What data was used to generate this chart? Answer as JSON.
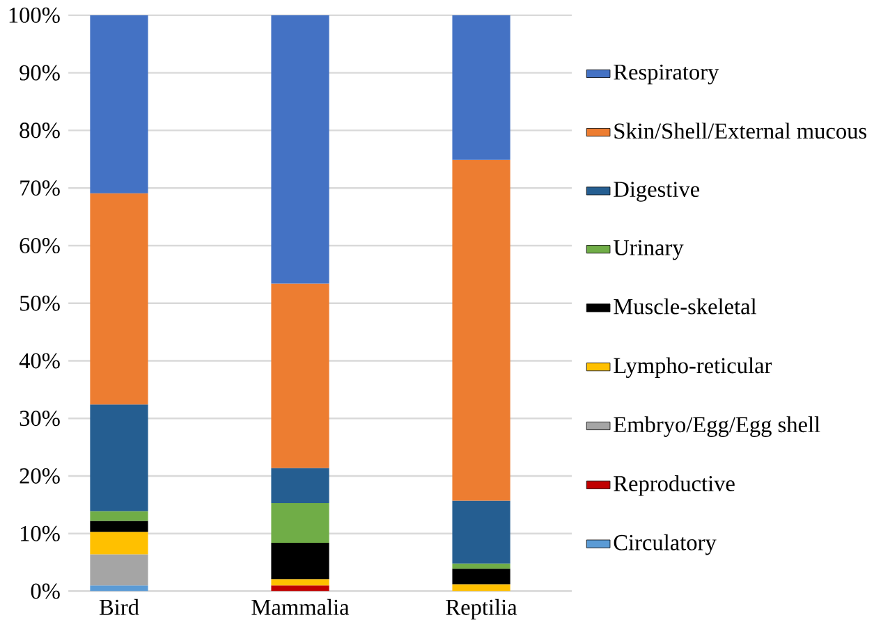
{
  "chart_data": {
    "type": "bar",
    "stacked": true,
    "categories": [
      "Bird",
      "Mammalia",
      "Reptilia"
    ],
    "series": [
      {
        "name": "Circulatory",
        "color": "#5b9bd5",
        "values": [
          1.0,
          null,
          null
        ]
      },
      {
        "name": "Reproductive",
        "color": "#c00000",
        "values": [
          null,
          1.0,
          null
        ]
      },
      {
        "name": "Embryo/Egg/Egg shell",
        "color": "#a5a5a5",
        "values": [
          5.4,
          null,
          null
        ]
      },
      {
        "name": "Lympho-reticular",
        "color": "#ffc000",
        "values": [
          3.9,
          1.1,
          1.2
        ]
      },
      {
        "name": "Muscle-skeletal",
        "color": "#000000",
        "values": [
          1.9,
          6.3,
          2.7
        ]
      },
      {
        "name": "Urinary",
        "color": "#70ad47",
        "values": [
          1.7,
          6.9,
          0.9
        ]
      },
      {
        "name": "Digestive",
        "color": "#255e91",
        "values": [
          18.5,
          6.1,
          10.9
        ]
      },
      {
        "name": "Skin/Shell/External mucous",
        "color": "#ed7d31",
        "values": [
          36.7,
          32.0,
          59.2
        ]
      },
      {
        "name": "Respiratory",
        "color": "#4472c4",
        "values": [
          30.9,
          46.6,
          25.1
        ]
      }
    ],
    "ylim": [
      0,
      100
    ],
    "yticks": [
      {
        "value": 0,
        "label": "0%"
      },
      {
        "value": 10,
        "label": "10%"
      },
      {
        "value": 20,
        "label": "20%"
      },
      {
        "value": 30,
        "label": "30%"
      },
      {
        "value": 40,
        "label": "40%"
      },
      {
        "value": 50,
        "label": "50%"
      },
      {
        "value": 60,
        "label": "60%"
      },
      {
        "value": 70,
        "label": "70%"
      },
      {
        "value": 80,
        "label": "80%"
      },
      {
        "value": 90,
        "label": "90%"
      },
      {
        "value": 100,
        "label": "100%"
      }
    ],
    "grid": "y",
    "legend": "right"
  }
}
